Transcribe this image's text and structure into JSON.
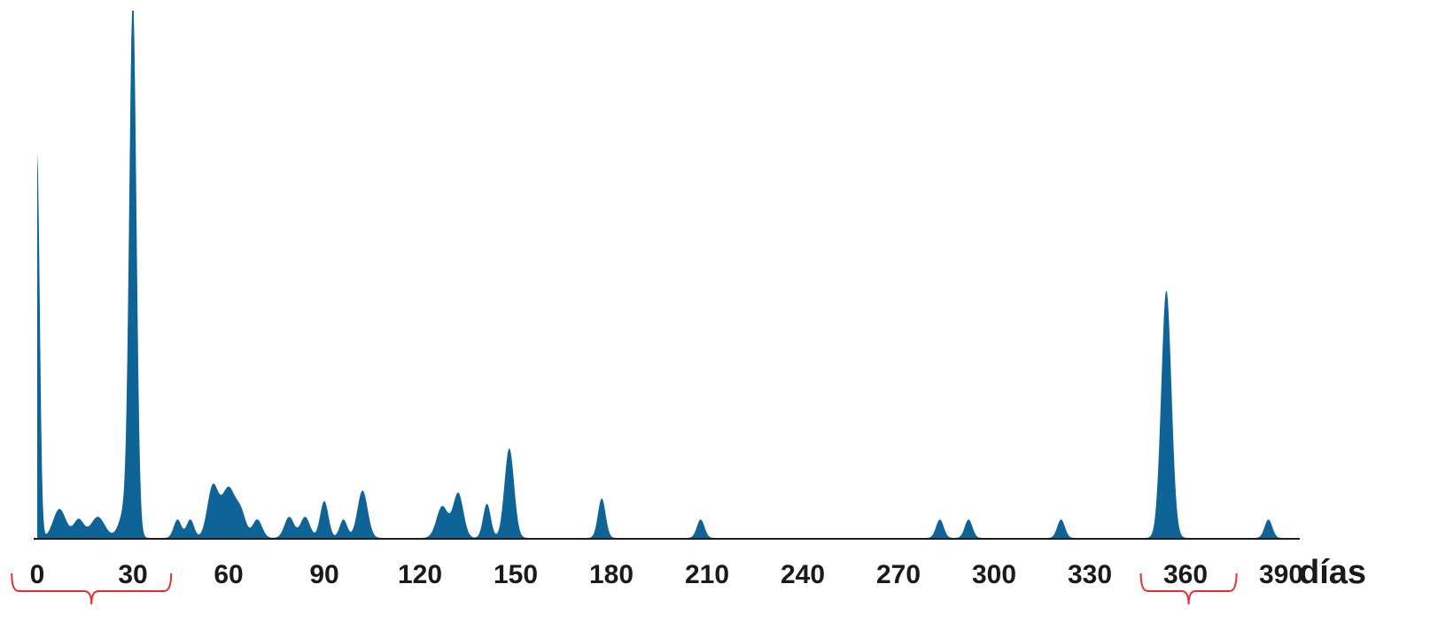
{
  "chart_data": {
    "type": "area",
    "title": "",
    "xlabel": "días",
    "ylabel": "",
    "xlim": [
      0,
      410
    ],
    "ylim": [
      0,
      1
    ],
    "grid": false,
    "legend": "none",
    "color": "#0f6497",
    "bracket_color": "#e03030",
    "x_ticks": [
      0,
      30,
      60,
      90,
      120,
      150,
      180,
      210,
      240,
      270,
      300,
      330,
      360,
      390
    ],
    "x_tick_labels": [
      "0",
      "30",
      "60",
      "90",
      "120",
      "150",
      "180",
      "210",
      "240",
      "270",
      "300",
      "330",
      "360",
      "390"
    ],
    "brackets": [
      {
        "from": -8,
        "to": 42
      },
      {
        "from": 346,
        "to": 376
      }
    ],
    "peaks": [
      {
        "x": 0,
        "y": 0.73,
        "w": 0.8
      },
      {
        "x": 7,
        "y": 0.055,
        "w": 2.0
      },
      {
        "x": 13,
        "y": 0.035,
        "w": 1.6
      },
      {
        "x": 19,
        "y": 0.04,
        "w": 2.2
      },
      {
        "x": 30,
        "y": 1.0,
        "w": 1.1
      },
      {
        "x": 28,
        "y": 0.06,
        "w": 2.0
      },
      {
        "x": 44,
        "y": 0.035,
        "w": 1.2
      },
      {
        "x": 48,
        "y": 0.035,
        "w": 1.2
      },
      {
        "x": 55,
        "y": 0.095,
        "w": 1.7
      },
      {
        "x": 60,
        "y": 0.095,
        "w": 2.2
      },
      {
        "x": 64,
        "y": 0.04,
        "w": 1.5
      },
      {
        "x": 69,
        "y": 0.035,
        "w": 1.5
      },
      {
        "x": 79,
        "y": 0.04,
        "w": 1.5
      },
      {
        "x": 84,
        "y": 0.04,
        "w": 1.5
      },
      {
        "x": 90,
        "y": 0.07,
        "w": 1.3
      },
      {
        "x": 96,
        "y": 0.035,
        "w": 1.2
      },
      {
        "x": 102,
        "y": 0.09,
        "w": 1.6
      },
      {
        "x": 127,
        "y": 0.06,
        "w": 1.8
      },
      {
        "x": 132,
        "y": 0.085,
        "w": 1.6
      },
      {
        "x": 141,
        "y": 0.065,
        "w": 1.2
      },
      {
        "x": 148,
        "y": 0.17,
        "w": 1.5
      },
      {
        "x": 177,
        "y": 0.075,
        "w": 1.2
      },
      {
        "x": 208,
        "y": 0.035,
        "w": 1.2
      },
      {
        "x": 283,
        "y": 0.035,
        "w": 1.2
      },
      {
        "x": 292,
        "y": 0.035,
        "w": 1.2
      },
      {
        "x": 321,
        "y": 0.035,
        "w": 1.2
      },
      {
        "x": 354,
        "y": 0.47,
        "w": 1.6
      },
      {
        "x": 386,
        "y": 0.035,
        "w": 1.2
      }
    ]
  }
}
